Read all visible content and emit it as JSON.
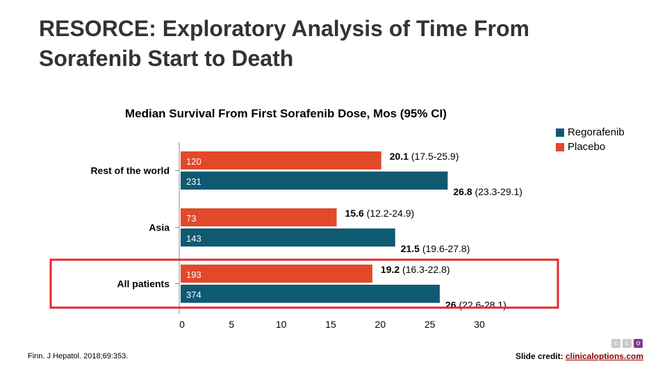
{
  "slide": {
    "title": "RESORCE: Exploratory Analysis of Time From Sorafenib Start to Death",
    "footnote": "Finn. J Hepatol. 2018;69:353.",
    "credit_label": "Slide credit: ",
    "credit_link": "clinicaloptions.com",
    "logo_letters": [
      "c",
      "c",
      "o"
    ]
  },
  "chart_data": {
    "type": "bar",
    "orientation": "horizontal",
    "title": "Median Survival From First Sorafenib Dose, Mos (95% CI)",
    "xlim": [
      0,
      30
    ],
    "xticks": [
      0,
      5,
      10,
      15,
      20,
      25,
      30
    ],
    "categories": [
      "Rest of the world",
      "Asia",
      "All patients"
    ],
    "highlight_category": "All patients",
    "highlight_color": "#e8262b",
    "series": [
      {
        "name": "Placebo",
        "color": "#e2492a",
        "values": [
          20.1,
          15.6,
          19.2
        ],
        "n": [
          "120",
          "73",
          "193"
        ],
        "value_labels": [
          "20.1",
          "15.6",
          "19.2"
        ],
        "ci_labels": [
          "(17.5-25.9)",
          "(12.2-24.9)",
          "(16.3-22.8)"
        ]
      },
      {
        "name": "Regorafenib",
        "color": "#0f5a73",
        "values": [
          26.8,
          21.5,
          26
        ],
        "n": [
          "231",
          "143",
          "374"
        ],
        "value_labels": [
          "26.8",
          "21.5",
          "26"
        ],
        "ci_labels": [
          "(23.3-29.1)",
          "(19.6-27.8)",
          "(22.6-28.1)"
        ]
      }
    ],
    "legend_order": [
      "Regorafenib",
      "Placebo"
    ],
    "legend_position": "top-right"
  }
}
